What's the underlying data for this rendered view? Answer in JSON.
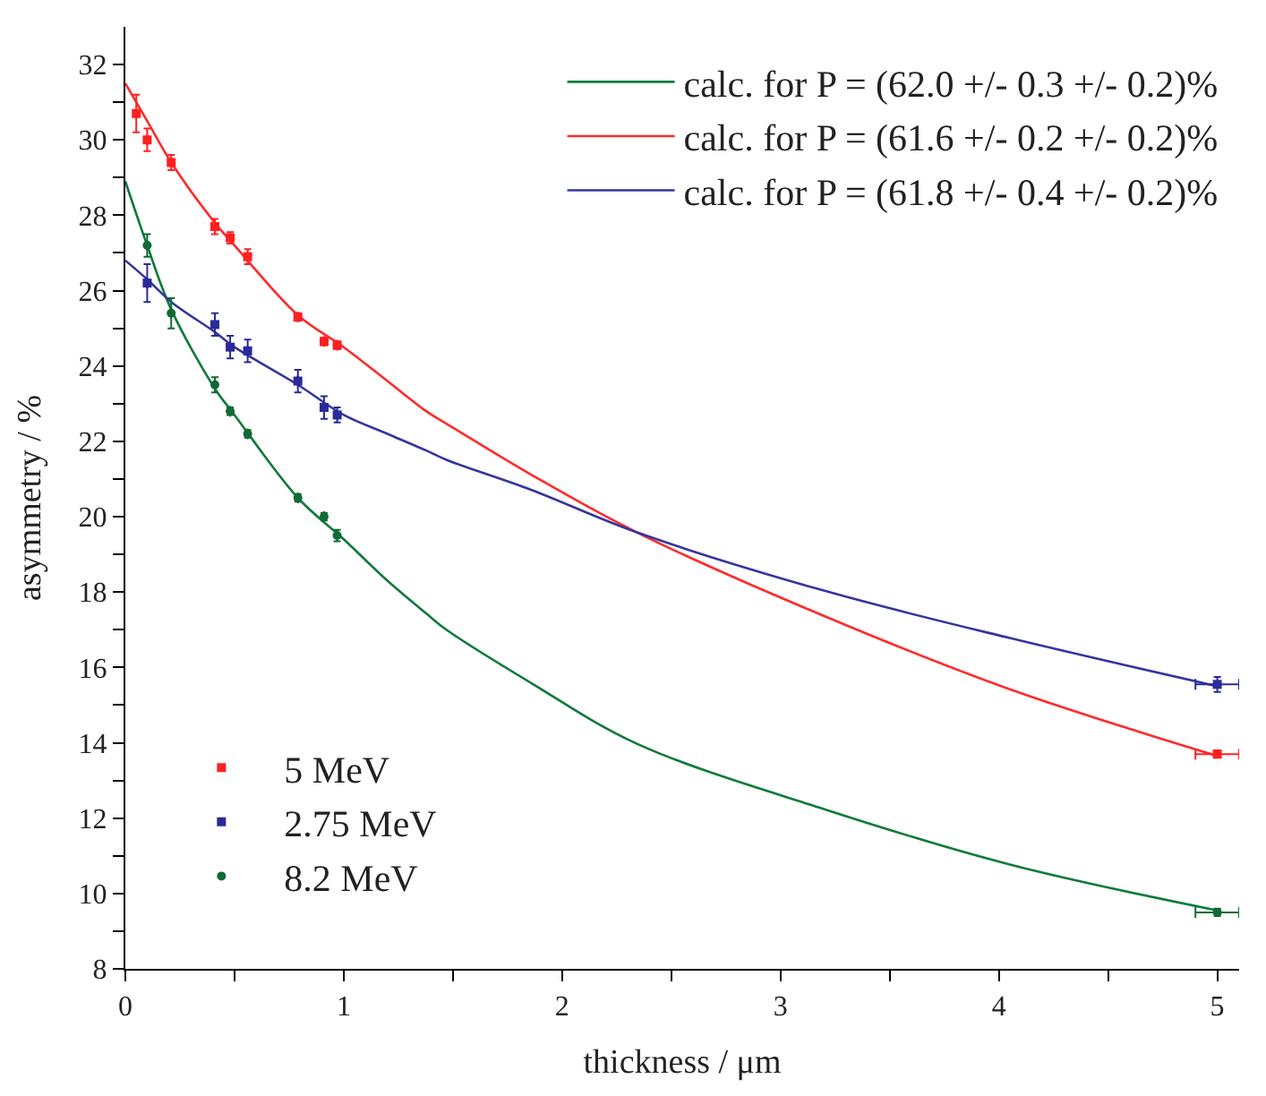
{
  "chart_data": {
    "type": "scatter",
    "xlabel": "thickness / μm",
    "ylabel": "asymmetry / %",
    "xlim": [
      0,
      5.1
    ],
    "ylim": [
      8,
      33
    ],
    "xticks": [
      0,
      {
        "value": 0.5,
        "label": null
      },
      1,
      {
        "value": 1.5,
        "label": null
      },
      2,
      {
        "value": 2.5,
        "label": null
      },
      3,
      {
        "value": 3.5,
        "label": null
      },
      4,
      {
        "value": 4.5,
        "label": null
      },
      5
    ],
    "yticks": [
      8,
      {
        "value": 9,
        "label": null
      },
      10,
      {
        "value": 11,
        "label": null
      },
      12,
      {
        "value": 13,
        "label": null
      },
      14,
      {
        "value": 15,
        "label": null
      },
      16,
      {
        "value": 17,
        "label": null
      },
      18,
      {
        "value": 19,
        "label": null
      },
      20,
      {
        "value": 21,
        "label": null
      },
      22,
      {
        "value": 23,
        "label": null
      },
      24,
      {
        "value": 25,
        "label": null
      },
      26,
      {
        "value": 27,
        "label": null
      },
      28,
      {
        "value": 29,
        "label": null
      },
      30,
      {
        "value": 31,
        "label": null
      },
      32
    ],
    "grid": false,
    "legend": "top right",
    "series": [
      {
        "type": "line",
        "name": "calc. for P = (62.0 +/- 0.3 +/- 0.2)%",
        "color": "#0f7a3c",
        "marker": "none",
        "x": [
          0,
          0.1,
          0.21,
          0.41,
          0.5,
          0.79,
          1.0,
          1.2,
          1.38,
          1.47,
          1.86,
          2.34,
          3.21,
          4.05,
          5.0
        ],
        "values": [
          28.9,
          27.2,
          25.5,
          23.4,
          22.7,
          20.5,
          19.4,
          18.3,
          17.42,
          17.0,
          15.58,
          13.98,
          12.22,
          10.77,
          9.55
        ]
      },
      {
        "type": "line",
        "name": "calc. for P = (61.6 +/- 0.2 +/- 0.2)%",
        "color": "#ff2a2a",
        "marker": "none",
        "x": [
          0,
          0.1,
          0.21,
          0.41,
          0.5,
          0.79,
          1.0,
          1.2,
          1.38,
          1.47,
          1.86,
          2.34,
          3.21,
          4.05,
          5.0
        ],
        "values": [
          31.5,
          30.5,
          29.4,
          27.8,
          27.2,
          25.35,
          24.5,
          23.6,
          22.79,
          22.47,
          21.11,
          19.59,
          17.34,
          15.42,
          13.65
        ]
      },
      {
        "type": "line",
        "name": "calc. for P = (61.8 +/- 0.4 +/- 0.2)%",
        "color": "#3535a0",
        "marker": "none",
        "x": [
          0,
          0.1,
          0.21,
          0.41,
          0.5,
          0.79,
          1.0,
          1.2,
          1.38,
          1.47,
          1.86,
          2.34,
          3.21,
          4.05,
          5.0
        ],
        "values": [
          26.8,
          26.3,
          25.7,
          24.9,
          24.5,
          23.5,
          22.7,
          22.2,
          21.75,
          21.51,
          20.71,
          19.59,
          18.02,
          16.78,
          15.5
        ]
      },
      {
        "name": "5 MeV",
        "color": "#ff2020",
        "marker": "square",
        "x": [
          0.05,
          0.1,
          0.21,
          0.41,
          0.48,
          0.56,
          0.79,
          0.91,
          0.97,
          5.0
        ],
        "values": [
          30.7,
          30.0,
          29.4,
          27.7,
          27.4,
          26.9,
          25.3,
          24.65,
          24.55,
          13.7
        ],
        "errors": [
          0.5,
          0.3,
          0.2,
          0.2,
          0.15,
          0.2,
          0.1,
          0.1,
          0.1,
          0.1
        ],
        "xerrors": [
          null,
          null,
          null,
          null,
          null,
          null,
          null,
          null,
          null,
          0.1
        ]
      },
      {
        "name": "2.75 MeV",
        "color": "#2a2a9a",
        "marker": "square",
        "x": [
          0.1,
          0.21,
          0.41,
          0.48,
          0.56,
          0.79,
          0.91,
          0.97,
          5.0
        ],
        "values": [
          26.2,
          null,
          25.1,
          24.5,
          24.4,
          23.6,
          22.9,
          22.7,
          15.55
        ],
        "errors": [
          0.5,
          null,
          0.3,
          0.3,
          0.3,
          0.3,
          0.3,
          0.2,
          0.2
        ],
        "xerrors": [
          null,
          null,
          null,
          null,
          null,
          null,
          null,
          null,
          0.1
        ]
      },
      {
        "name": "8.2 MeV",
        "color": "#0f6a35",
        "marker": "circle",
        "x": [
          0.1,
          0.21,
          0.41,
          0.48,
          0.56,
          0.79,
          0.91,
          0.97,
          5.0
        ],
        "values": [
          27.2,
          25.4,
          23.5,
          22.8,
          22.2,
          20.5,
          20.0,
          19.5,
          9.5
        ],
        "errors": [
          0.3,
          0.4,
          0.2,
          0.1,
          0.1,
          0.1,
          0.1,
          0.15,
          0.1
        ],
        "xerrors": [
          null,
          null,
          null,
          null,
          null,
          null,
          null,
          null,
          0.1
        ]
      }
    ]
  }
}
